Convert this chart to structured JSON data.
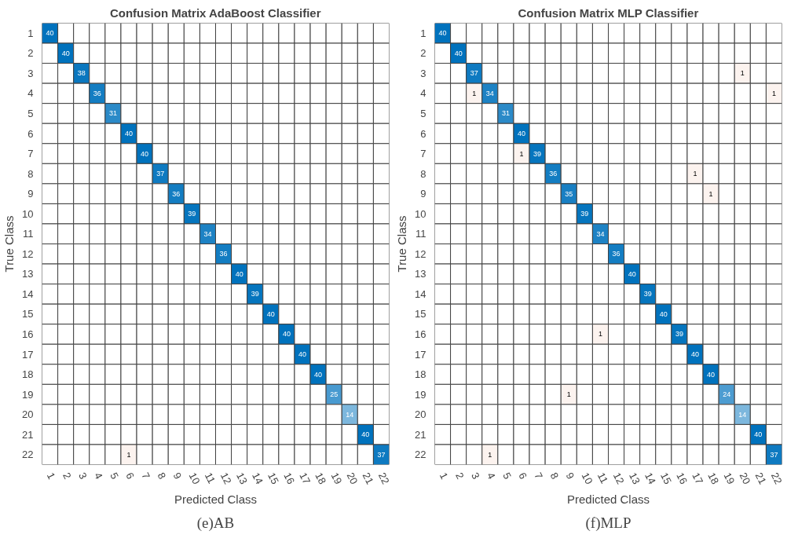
{
  "chart_data": [
    {
      "type": "heatmap",
      "title": "Confusion Matrix AdaBoost Classifier",
      "xlabel": "Predicted Class",
      "ylabel": "True Class",
      "annotations": [
        "(e)AB"
      ],
      "data_labels": true,
      "categories": [
        "1",
        "2",
        "3",
        "4",
        "5",
        "6",
        "7",
        "8",
        "9",
        "10",
        "11",
        "12",
        "13",
        "14",
        "15",
        "16",
        "17",
        "18",
        "19",
        "20",
        "21",
        "22"
      ],
      "y_categories": [
        "1",
        "2",
        "3",
        "4",
        "5",
        "6",
        "7",
        "8",
        "9",
        "10",
        "11",
        "12",
        "13",
        "14",
        "15",
        "16",
        "17",
        "18",
        "19",
        "20",
        "21",
        "22"
      ],
      "cells": [
        [
          40,
          null,
          null,
          null,
          null,
          null,
          null,
          null,
          null,
          null,
          null,
          null,
          null,
          null,
          null,
          null,
          null,
          null,
          null,
          null,
          null,
          null
        ],
        [
          null,
          40,
          null,
          null,
          null,
          null,
          null,
          null,
          null,
          null,
          null,
          null,
          null,
          null,
          null,
          null,
          null,
          null,
          null,
          null,
          null,
          null
        ],
        [
          null,
          null,
          38,
          null,
          null,
          null,
          null,
          null,
          null,
          null,
          null,
          null,
          null,
          null,
          null,
          null,
          null,
          null,
          null,
          null,
          null,
          null
        ],
        [
          null,
          null,
          null,
          36,
          null,
          null,
          null,
          null,
          null,
          null,
          null,
          null,
          null,
          null,
          null,
          null,
          null,
          null,
          null,
          null,
          null,
          null
        ],
        [
          null,
          null,
          null,
          null,
          31,
          null,
          null,
          null,
          null,
          null,
          null,
          null,
          null,
          null,
          null,
          null,
          null,
          null,
          null,
          null,
          null,
          null
        ],
        [
          null,
          null,
          null,
          null,
          null,
          40,
          null,
          null,
          null,
          null,
          null,
          null,
          null,
          null,
          null,
          null,
          null,
          null,
          null,
          null,
          null,
          null
        ],
        [
          null,
          null,
          null,
          null,
          null,
          null,
          40,
          null,
          null,
          null,
          null,
          null,
          null,
          null,
          null,
          null,
          null,
          null,
          null,
          null,
          null,
          null
        ],
        [
          null,
          null,
          null,
          null,
          null,
          null,
          null,
          37,
          null,
          null,
          null,
          null,
          null,
          null,
          null,
          null,
          null,
          null,
          null,
          null,
          null,
          null
        ],
        [
          null,
          null,
          null,
          null,
          null,
          null,
          null,
          null,
          36,
          null,
          null,
          null,
          null,
          null,
          null,
          null,
          null,
          null,
          null,
          null,
          null,
          null
        ],
        [
          null,
          null,
          null,
          null,
          null,
          null,
          null,
          null,
          null,
          39,
          null,
          null,
          null,
          null,
          null,
          null,
          null,
          null,
          null,
          null,
          null,
          null
        ],
        [
          null,
          null,
          null,
          null,
          null,
          null,
          null,
          null,
          null,
          null,
          34,
          null,
          null,
          null,
          null,
          null,
          null,
          null,
          null,
          null,
          null,
          null
        ],
        [
          null,
          null,
          null,
          null,
          null,
          null,
          null,
          null,
          null,
          null,
          null,
          36,
          null,
          null,
          null,
          null,
          null,
          null,
          null,
          null,
          null,
          null
        ],
        [
          null,
          null,
          null,
          null,
          null,
          null,
          null,
          null,
          null,
          null,
          null,
          null,
          40,
          null,
          null,
          null,
          null,
          null,
          null,
          null,
          null,
          null
        ],
        [
          null,
          null,
          null,
          null,
          null,
          null,
          null,
          null,
          null,
          null,
          null,
          null,
          null,
          39,
          null,
          null,
          null,
          null,
          null,
          null,
          null,
          null
        ],
        [
          null,
          null,
          null,
          null,
          null,
          null,
          null,
          null,
          null,
          null,
          null,
          null,
          null,
          null,
          40,
          null,
          null,
          null,
          null,
          null,
          null,
          null
        ],
        [
          null,
          null,
          null,
          null,
          null,
          null,
          null,
          null,
          null,
          null,
          null,
          null,
          null,
          null,
          null,
          40,
          null,
          null,
          null,
          null,
          null,
          null
        ],
        [
          null,
          null,
          null,
          null,
          null,
          null,
          null,
          null,
          null,
          null,
          null,
          null,
          null,
          null,
          null,
          null,
          40,
          null,
          null,
          null,
          null,
          null
        ],
        [
          null,
          null,
          null,
          null,
          null,
          null,
          null,
          null,
          null,
          null,
          null,
          null,
          null,
          null,
          null,
          null,
          null,
          40,
          null,
          null,
          null,
          null
        ],
        [
          null,
          null,
          null,
          null,
          null,
          null,
          null,
          null,
          null,
          null,
          null,
          null,
          null,
          null,
          null,
          null,
          null,
          null,
          25,
          null,
          null,
          null
        ],
        [
          null,
          null,
          null,
          null,
          null,
          null,
          null,
          null,
          null,
          null,
          null,
          null,
          null,
          null,
          null,
          null,
          null,
          null,
          null,
          14,
          null,
          null
        ],
        [
          null,
          null,
          null,
          null,
          null,
          null,
          null,
          null,
          null,
          null,
          null,
          null,
          null,
          null,
          null,
          null,
          null,
          null,
          null,
          null,
          40,
          null
        ],
        [
          null,
          null,
          null,
          null,
          null,
          1,
          null,
          null,
          null,
          null,
          null,
          null,
          null,
          null,
          null,
          null,
          null,
          null,
          null,
          null,
          null,
          37
        ]
      ]
    },
    {
      "type": "heatmap",
      "title": "Confusion Matrix MLP Classifier",
      "xlabel": "Predicted Class",
      "ylabel": "True Class",
      "annotations": [
        "(f)MLP"
      ],
      "data_labels": true,
      "categories": [
        "1",
        "2",
        "3",
        "4",
        "5",
        "6",
        "7",
        "8",
        "9",
        "10",
        "11",
        "12",
        "13",
        "14",
        "15",
        "16",
        "17",
        "18",
        "19",
        "20",
        "21",
        "22"
      ],
      "y_categories": [
        "1",
        "2",
        "3",
        "4",
        "5",
        "6",
        "7",
        "8",
        "9",
        "10",
        "11",
        "12",
        "13",
        "14",
        "15",
        "16",
        "17",
        "18",
        "19",
        "20",
        "21",
        "22"
      ],
      "cells": [
        [
          40,
          null,
          null,
          null,
          null,
          null,
          null,
          null,
          null,
          null,
          null,
          null,
          null,
          null,
          null,
          null,
          null,
          null,
          null,
          null,
          null,
          null
        ],
        [
          null,
          40,
          null,
          null,
          null,
          null,
          null,
          null,
          null,
          null,
          null,
          null,
          null,
          null,
          null,
          null,
          null,
          null,
          null,
          null,
          null,
          null
        ],
        [
          null,
          null,
          37,
          null,
          null,
          null,
          null,
          null,
          null,
          null,
          null,
          null,
          null,
          null,
          null,
          null,
          null,
          null,
          null,
          1,
          null,
          null
        ],
        [
          null,
          null,
          1,
          34,
          null,
          null,
          null,
          null,
          null,
          null,
          null,
          null,
          null,
          null,
          null,
          null,
          null,
          null,
          null,
          null,
          null,
          1
        ],
        [
          null,
          null,
          null,
          null,
          31,
          null,
          null,
          null,
          null,
          null,
          null,
          null,
          null,
          null,
          null,
          null,
          null,
          null,
          null,
          null,
          null,
          null
        ],
        [
          null,
          null,
          null,
          null,
          null,
          40,
          null,
          null,
          null,
          null,
          null,
          null,
          null,
          null,
          null,
          null,
          null,
          null,
          null,
          null,
          null,
          null
        ],
        [
          null,
          null,
          null,
          null,
          null,
          1,
          39,
          null,
          null,
          null,
          null,
          null,
          null,
          null,
          null,
          null,
          null,
          null,
          null,
          null,
          null,
          null
        ],
        [
          null,
          null,
          null,
          null,
          null,
          null,
          null,
          36,
          null,
          null,
          null,
          null,
          null,
          null,
          null,
          null,
          1,
          null,
          null,
          null,
          null,
          null
        ],
        [
          null,
          null,
          null,
          null,
          null,
          null,
          null,
          null,
          35,
          null,
          null,
          null,
          null,
          null,
          null,
          null,
          null,
          1,
          null,
          null,
          null,
          null
        ],
        [
          null,
          null,
          null,
          null,
          null,
          null,
          null,
          null,
          null,
          39,
          null,
          null,
          null,
          null,
          null,
          null,
          null,
          null,
          null,
          null,
          null,
          null
        ],
        [
          null,
          null,
          null,
          null,
          null,
          null,
          null,
          null,
          null,
          null,
          34,
          null,
          null,
          null,
          null,
          null,
          null,
          null,
          null,
          null,
          null,
          null
        ],
        [
          null,
          null,
          null,
          null,
          null,
          null,
          null,
          null,
          null,
          null,
          null,
          36,
          null,
          null,
          null,
          null,
          null,
          null,
          null,
          null,
          null,
          null
        ],
        [
          null,
          null,
          null,
          null,
          null,
          null,
          null,
          null,
          null,
          null,
          null,
          null,
          40,
          null,
          null,
          null,
          null,
          null,
          null,
          null,
          null,
          null
        ],
        [
          null,
          null,
          null,
          null,
          null,
          null,
          null,
          null,
          null,
          null,
          null,
          null,
          null,
          39,
          null,
          null,
          null,
          null,
          null,
          null,
          null,
          null
        ],
        [
          null,
          null,
          null,
          null,
          null,
          null,
          null,
          null,
          null,
          null,
          null,
          null,
          null,
          null,
          40,
          null,
          null,
          null,
          null,
          null,
          null,
          null
        ],
        [
          null,
          null,
          null,
          null,
          null,
          null,
          null,
          null,
          null,
          null,
          1,
          null,
          null,
          null,
          null,
          39,
          null,
          null,
          null,
          null,
          null,
          null
        ],
        [
          null,
          null,
          null,
          null,
          null,
          null,
          null,
          null,
          null,
          null,
          null,
          null,
          null,
          null,
          null,
          null,
          40,
          null,
          null,
          null,
          null,
          null
        ],
        [
          null,
          null,
          null,
          null,
          null,
          null,
          null,
          null,
          null,
          null,
          null,
          null,
          null,
          null,
          null,
          null,
          null,
          40,
          null,
          null,
          null,
          null
        ],
        [
          null,
          null,
          null,
          null,
          null,
          null,
          null,
          null,
          1,
          null,
          null,
          null,
          null,
          null,
          null,
          null,
          null,
          null,
          24,
          null,
          null,
          null
        ],
        [
          null,
          null,
          null,
          null,
          null,
          null,
          null,
          null,
          null,
          null,
          null,
          null,
          null,
          null,
          null,
          null,
          null,
          null,
          null,
          14,
          null,
          null
        ],
        [
          null,
          null,
          null,
          null,
          null,
          null,
          null,
          null,
          null,
          null,
          null,
          null,
          null,
          null,
          null,
          null,
          null,
          null,
          null,
          null,
          40,
          null
        ],
        [
          null,
          null,
          null,
          1,
          null,
          null,
          null,
          null,
          null,
          null,
          null,
          null,
          null,
          null,
          null,
          null,
          null,
          null,
          null,
          null,
          null,
          37
        ]
      ]
    }
  ]
}
